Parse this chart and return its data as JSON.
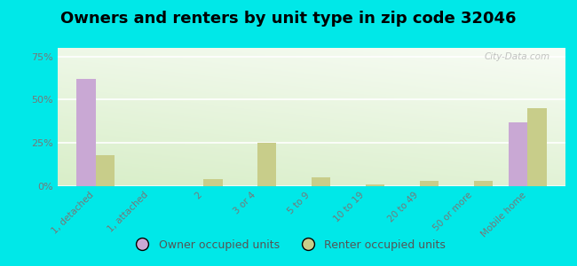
{
  "title": "Owners and renters by unit type in zip code 32046",
  "categories": [
    "1, detached",
    "1, attached",
    "2",
    "3 or 4",
    "5 to 9",
    "10 to 19",
    "20 to 49",
    "50 or more",
    "Mobile home"
  ],
  "owner_values": [
    62,
    0,
    0,
    0,
    0,
    0,
    0,
    0,
    37
  ],
  "renter_values": [
    18,
    0,
    4,
    25,
    5,
    1,
    3,
    3,
    45
  ],
  "owner_color": "#c9a8d4",
  "renter_color": "#c8cd8a",
  "background_color": "#00e8e8",
  "plot_bg_top_left": "#d8eec8",
  "plot_bg_bottom_right": "#f8fcf5",
  "yticks": [
    0,
    25,
    50,
    75
  ],
  "ylim": [
    0,
    80
  ],
  "bar_width": 0.35,
  "watermark": "City-Data.com",
  "legend_owner": "Owner occupied units",
  "legend_renter": "Renter occupied units",
  "grid_color": "#ffffff",
  "tick_color": "#777777",
  "title_fontsize": 13
}
